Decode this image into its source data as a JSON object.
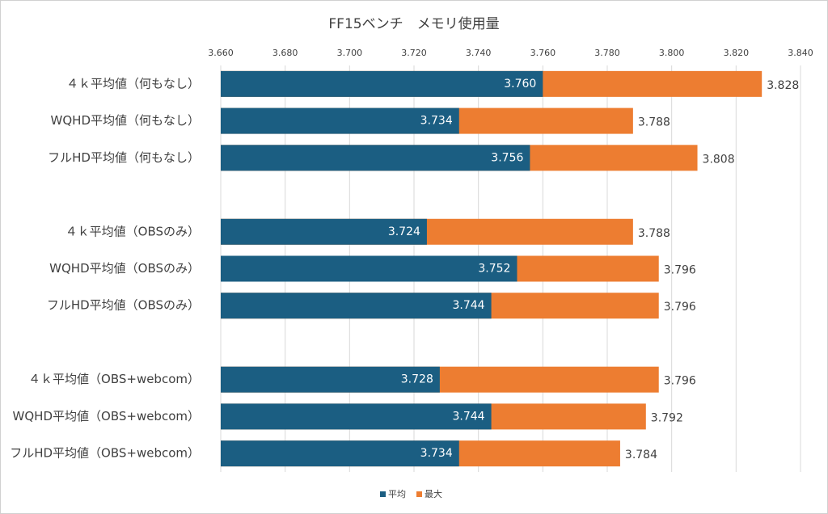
{
  "chart_data": {
    "type": "bar",
    "orientation": "horizontal",
    "title": "FF15ベンチ　メモリ使用量",
    "categories": [
      "４ｋ平均値（何もなし）",
      "WQHD平均値（何もなし）",
      "フルHD平均値（何もなし）",
      null,
      "４ｋ平均値（OBSのみ）",
      "WQHD平均値（OBSのみ）",
      "フルHD平均値（OBSのみ）",
      null,
      "４ｋ平均値（OBS+webcom）",
      "WQHD平均値（OBS+webcom）",
      "フルHD平均値（OBS+webcom）"
    ],
    "series": [
      {
        "name": "平均",
        "color": "#1b5e82",
        "values": [
          3.76,
          3.734,
          3.756,
          null,
          3.724,
          3.752,
          3.744,
          null,
          3.728,
          3.744,
          3.734
        ],
        "value_labels": [
          "3.760",
          "3.734",
          "3.756",
          null,
          "3.724",
          "3.752",
          "3.744",
          null,
          "3.728",
          "3.744",
          "3.734"
        ]
      },
      {
        "name": "最大",
        "color": "#ed7d31",
        "values": [
          3.828,
          3.788,
          3.808,
          null,
          3.788,
          3.796,
          3.796,
          null,
          3.796,
          3.792,
          3.784
        ],
        "value_labels": [
          "3.828",
          "3.788",
          "3.808",
          null,
          "3.788",
          "3.796",
          "3.796",
          null,
          "3.796",
          "3.792",
          "3.784"
        ]
      }
    ],
    "xlim": [
      3.66,
      3.84
    ],
    "xticks": [
      {
        "value": 3.66,
        "label": "3.660"
      },
      {
        "value": 3.68,
        "label": "3.680"
      },
      {
        "value": 3.7,
        "label": "3.700"
      },
      {
        "value": 3.72,
        "label": "3.720"
      },
      {
        "value": 3.74,
        "label": "3.740"
      },
      {
        "value": 3.76,
        "label": "3.760"
      },
      {
        "value": 3.78,
        "label": "3.780"
      },
      {
        "value": 3.8,
        "label": "3.800"
      },
      {
        "value": 3.82,
        "label": "3.820"
      },
      {
        "value": 3.84,
        "label": "3.840"
      }
    ],
    "grid": true,
    "legend": "bottom"
  }
}
